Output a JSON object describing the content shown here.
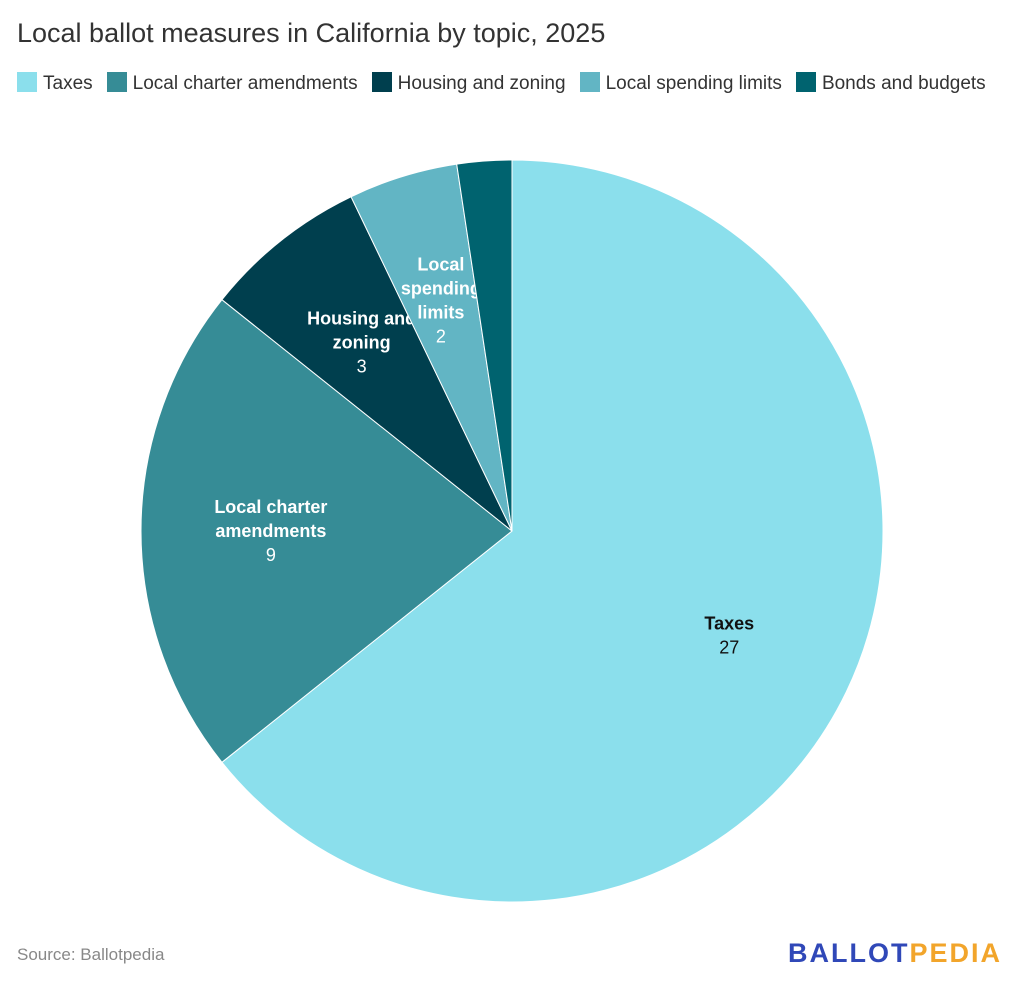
{
  "title": "Local ballot measures in California by topic, 2025",
  "source": "Source: Ballotpedia",
  "logo": {
    "part1": "BALLOT",
    "part2": "PEDIA"
  },
  "chart_data": {
    "type": "pie",
    "title": "Local ballot measures in California by topic, 2025",
    "legend_position": "top-left",
    "slices": [
      {
        "label": "Taxes",
        "display": [
          "Taxes"
        ],
        "value": 27,
        "color": "#8BDFEC",
        "text_color": "#111111",
        "show_label": true
      },
      {
        "label": "Local charter amendments",
        "display": [
          "Local charter",
          "amendments"
        ],
        "value": 9,
        "color": "#368C96",
        "text_color": "#ffffff",
        "show_label": true
      },
      {
        "label": "Housing and zoning",
        "display": [
          "Housing and",
          "zoning"
        ],
        "value": 3,
        "color": "#003F4E",
        "text_color": "#ffffff",
        "show_label": true
      },
      {
        "label": "Local spending limits",
        "display": [
          "Local",
          "spending",
          "limits"
        ],
        "value": 2,
        "color": "#62B5C4",
        "text_color": "#ffffff",
        "show_label": true
      },
      {
        "label": "Bonds and budgets",
        "display": [
          "Bonds and budgets"
        ],
        "value": 1,
        "color": "#00636F",
        "text_color": "#ffffff",
        "show_label": false
      }
    ]
  }
}
